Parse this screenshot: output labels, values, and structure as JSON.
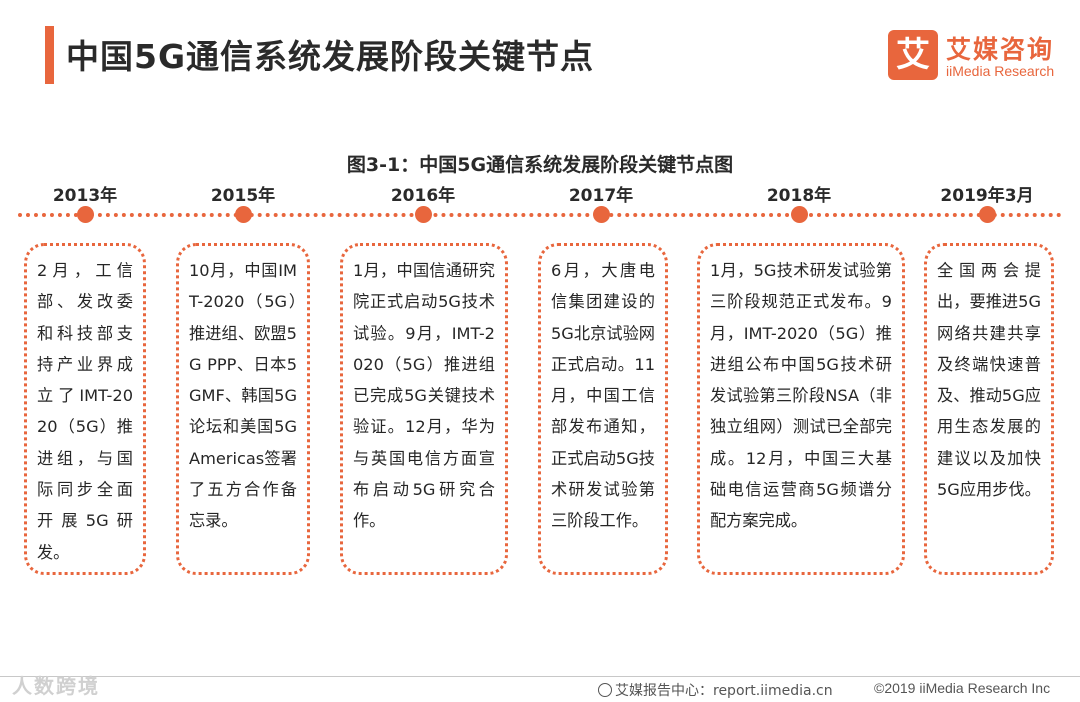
{
  "header": {
    "title": "中国5G通信系统发展阶段关键节点",
    "logo_mark": "艾",
    "logo_cn": "艾媒咨询",
    "logo_en": "iiMedia Research"
  },
  "figure_caption": "图3-1：中国5G通信系统发展阶段关键节点图",
  "timeline": [
    {
      "year": "2013年",
      "text": "2月，工信部、发改委和科技部支持产业界成立了IMT-2020（5G）推进组，与国际同步全面开展5G研发。"
    },
    {
      "year": "2015年",
      "text": "10月，中国IMT-2020（5G）推进组、欧盟5G PPP、日本5GMF、韩国5G论坛和美国5G Americas签署了五方合作备忘录。"
    },
    {
      "year": "2016年",
      "text": "1月，中国信通研究院正式启动5G技术试验。9月，IMT-2020（5G）推进组已完成5G关键技术验证。12月，华为与英国电信方面宣布启动5G研究合作。"
    },
    {
      "year": "2017年",
      "text": "6月，大唐电信集团建设的5G北京试验网正式启动。11月，中国工信部发布通知，正式启动5G技术研发试验第三阶段工作。"
    },
    {
      "year": "2018年",
      "text": "1月，5G技术研发试验第三阶段规范正式发布。9月，IMT-2020（5G）推进组公布中国5G技术研发试验第三阶段NSA（非独立组网）测试已全部完成。12月，中国三大基础电信运营商5G频谱分配方案完成。"
    },
    {
      "year": "2019年3月",
      "text": "全国两会提出，要推进5G网络共建共享及终端快速普及、推动5G应用生态发展的建议以及加快5G应用步伐。"
    }
  ],
  "footer": {
    "watermark": "人数跨境",
    "source": "艾媒报告中心：report.iimedia.cn",
    "copyright": "©2019  iiMedia Research  Inc"
  },
  "colors": {
    "accent": "#e8663d"
  }
}
